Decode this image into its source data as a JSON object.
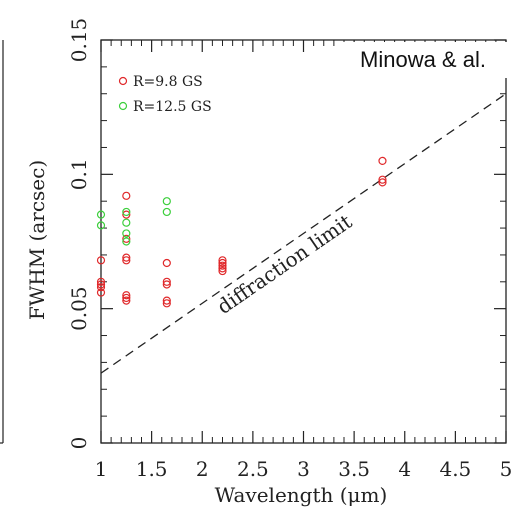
{
  "credit": "Minowa & al.",
  "chart_data": {
    "type": "scatter",
    "xlabel": "Wavelength (μm)",
    "ylabel": "FWHM (arcsec)",
    "xlim": [
      1,
      5
    ],
    "ylim": [
      0,
      0.15
    ],
    "xticks": [
      1,
      1.5,
      2,
      2.5,
      3,
      3.5,
      4,
      4.5,
      5
    ],
    "yticks": [
      0,
      0.05,
      0.1,
      0.15
    ],
    "ytick_labels": [
      "0",
      "0.05",
      "0.1",
      "0.15"
    ],
    "legend_placement": "top-left",
    "grid": false,
    "series": [
      {
        "name": "R=9.8 GS",
        "color": "#e0282a",
        "points": [
          [
            1.0,
            0.068
          ],
          [
            1.0,
            0.06
          ],
          [
            1.0,
            0.059
          ],
          [
            1.0,
            0.058
          ],
          [
            1.0,
            0.056
          ],
          [
            1.25,
            0.092
          ],
          [
            1.25,
            0.085
          ],
          [
            1.25,
            0.076
          ],
          [
            1.25,
            0.069
          ],
          [
            1.25,
            0.068
          ],
          [
            1.25,
            0.055
          ],
          [
            1.25,
            0.054
          ],
          [
            1.25,
            0.053
          ],
          [
            1.65,
            0.067
          ],
          [
            1.65,
            0.06
          ],
          [
            1.65,
            0.059
          ],
          [
            1.65,
            0.053
          ],
          [
            1.65,
            0.052
          ],
          [
            2.2,
            0.068
          ],
          [
            2.2,
            0.067
          ],
          [
            2.2,
            0.066
          ],
          [
            2.2,
            0.065
          ],
          [
            2.2,
            0.064
          ],
          [
            3.78,
            0.105
          ],
          [
            3.78,
            0.098
          ],
          [
            3.78,
            0.097
          ]
        ]
      },
      {
        "name": "R=12.5 GS",
        "color": "#3ccf3c",
        "points": [
          [
            1.0,
            0.085
          ],
          [
            1.0,
            0.081
          ],
          [
            1.25,
            0.086
          ],
          [
            1.25,
            0.082
          ],
          [
            1.25,
            0.078
          ],
          [
            1.25,
            0.075
          ],
          [
            1.65,
            0.09
          ],
          [
            1.65,
            0.086
          ]
        ]
      }
    ],
    "reference_line": {
      "label": "diffraction limit",
      "style": "dashed",
      "points": [
        [
          1,
          0.026
        ],
        [
          5,
          0.13
        ]
      ]
    }
  }
}
